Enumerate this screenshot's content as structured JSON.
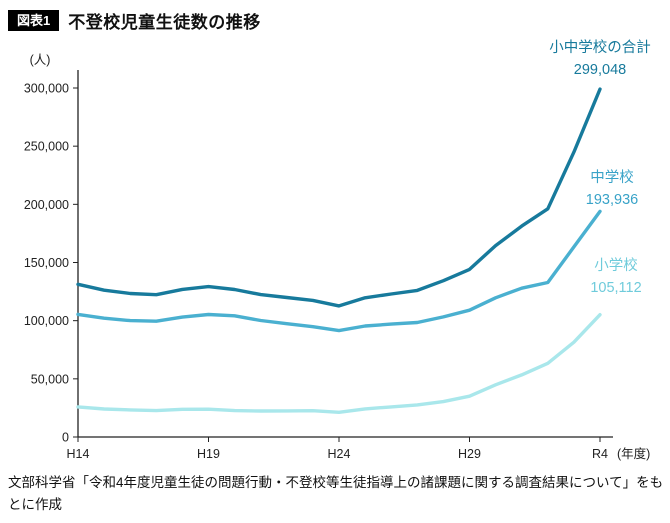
{
  "header": {
    "badge": "図表1",
    "title": "不登校児童生徒数の推移"
  },
  "footer": {
    "source": "文部科学省「令和4年度児童生徒の問題行動・不登校等生徒指導上の諸課題に関する調査結果について」をもとに作成"
  },
  "colors": {
    "axis": "#222222",
    "tick_text": "#222222"
  },
  "chart_data": {
    "type": "line",
    "title": "不登校児童生徒数の推移",
    "x": [
      "H14",
      "H15",
      "H16",
      "H17",
      "H18",
      "H19",
      "H20",
      "H21",
      "H22",
      "H23",
      "H24",
      "H25",
      "H26",
      "H27",
      "H28",
      "H29",
      "H30",
      "R1",
      "R2",
      "R3",
      "R4"
    ],
    "x_ticks": [
      {
        "index": 0,
        "label": "H14"
      },
      {
        "index": 5,
        "label": "H19"
      },
      {
        "index": 10,
        "label": "H24"
      },
      {
        "index": 15,
        "label": "H29"
      },
      {
        "index": 20,
        "label": "R4"
      }
    ],
    "x_unit": "(年度)",
    "y_unit": "(人)",
    "ylim": [
      0,
      300000
    ],
    "y_tick_step": 50000,
    "grid": false,
    "legend_position": "right-of-line-ends",
    "series": [
      {
        "name": "小中学校の合計",
        "final_label": "299,048",
        "color": "#177a9c",
        "label_color": "#177a9c",
        "values": [
          131252,
          126226,
          123358,
          122287,
          126894,
          129255,
          126805,
          122432,
          119891,
          117458,
          112689,
          119617,
          122897,
          126009,
          134398,
          144031,
          164528,
          181272,
          196127,
          244940,
          299048
        ]
      },
      {
        "name": "中学校",
        "final_label": "193,936",
        "color": "#4ab0d0",
        "label_color": "#39a3c8",
        "values": [
          105383,
          102149,
          100040,
          99578,
          103069,
          105328,
          104153,
          100105,
          97428,
          94836,
          91446,
          95442,
          97033,
          98408,
          103235,
          108999,
          119687,
          127922,
          132777,
          163442,
          193936
        ]
      },
      {
        "name": "小学校",
        "final_label": "105,112",
        "color": "#a9e7eb",
        "label_color": "#6fcbdb",
        "values": [
          25869,
          24077,
          23318,
          22709,
          23825,
          23927,
          22652,
          22327,
          22463,
          22622,
          21243,
          24175,
          25864,
          27583,
          30448,
          35032,
          44841,
          53350,
          63350,
          81498,
          105112
        ]
      }
    ]
  }
}
